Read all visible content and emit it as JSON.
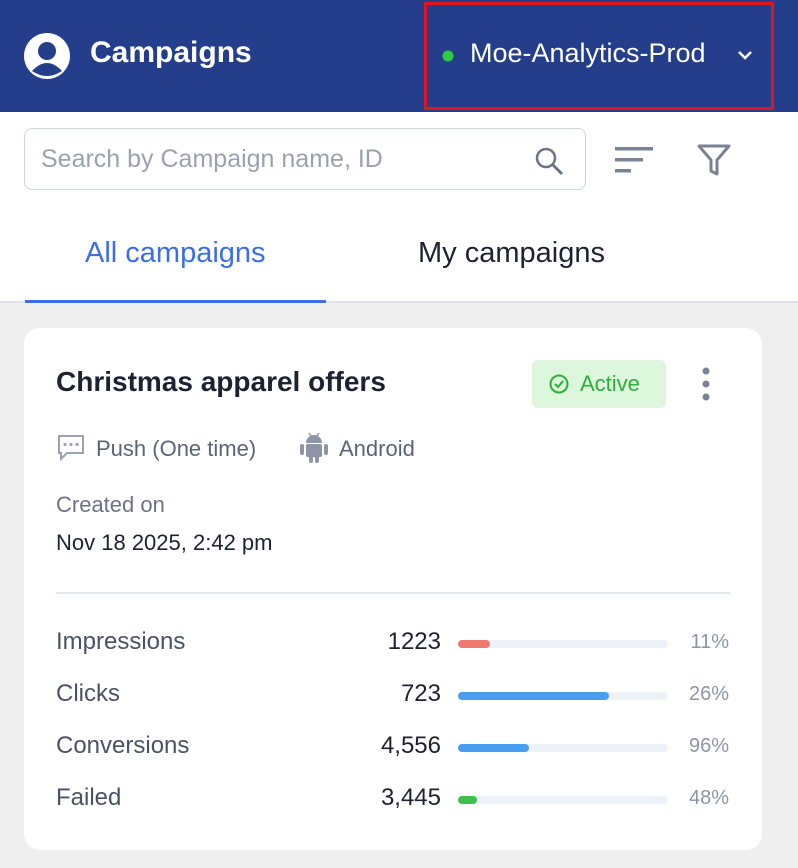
{
  "header": {
    "title": "Campaigns",
    "environment": "Moe-Analytics-Prod"
  },
  "search": {
    "placeholder": "Search by Campaign name, ID"
  },
  "tabs": {
    "items": [
      "All campaigns",
      "My campaigns"
    ],
    "active": 0
  },
  "campaign": {
    "title": "Christmas apparel offers",
    "status": "Active",
    "channel": "Push (One time)",
    "platform": "Android",
    "created_label": "Created on",
    "created_on": "Nov 18 2025, 2:42 pm",
    "stats": [
      {
        "label": "Impressions",
        "value": "1223",
        "percent": "11%",
        "fill": 15,
        "color": "#ef7a6d"
      },
      {
        "label": "Clicks",
        "value": "723",
        "percent": "26%",
        "fill": 72,
        "color": "#4a9ef0"
      },
      {
        "label": "Conversions",
        "value": "4,556",
        "percent": "96%",
        "fill": 34,
        "color": "#4a9ef0"
      },
      {
        "label": "Failed",
        "value": "3,445",
        "percent": "48%",
        "fill": 9,
        "color": "#3cc24a"
      }
    ]
  }
}
